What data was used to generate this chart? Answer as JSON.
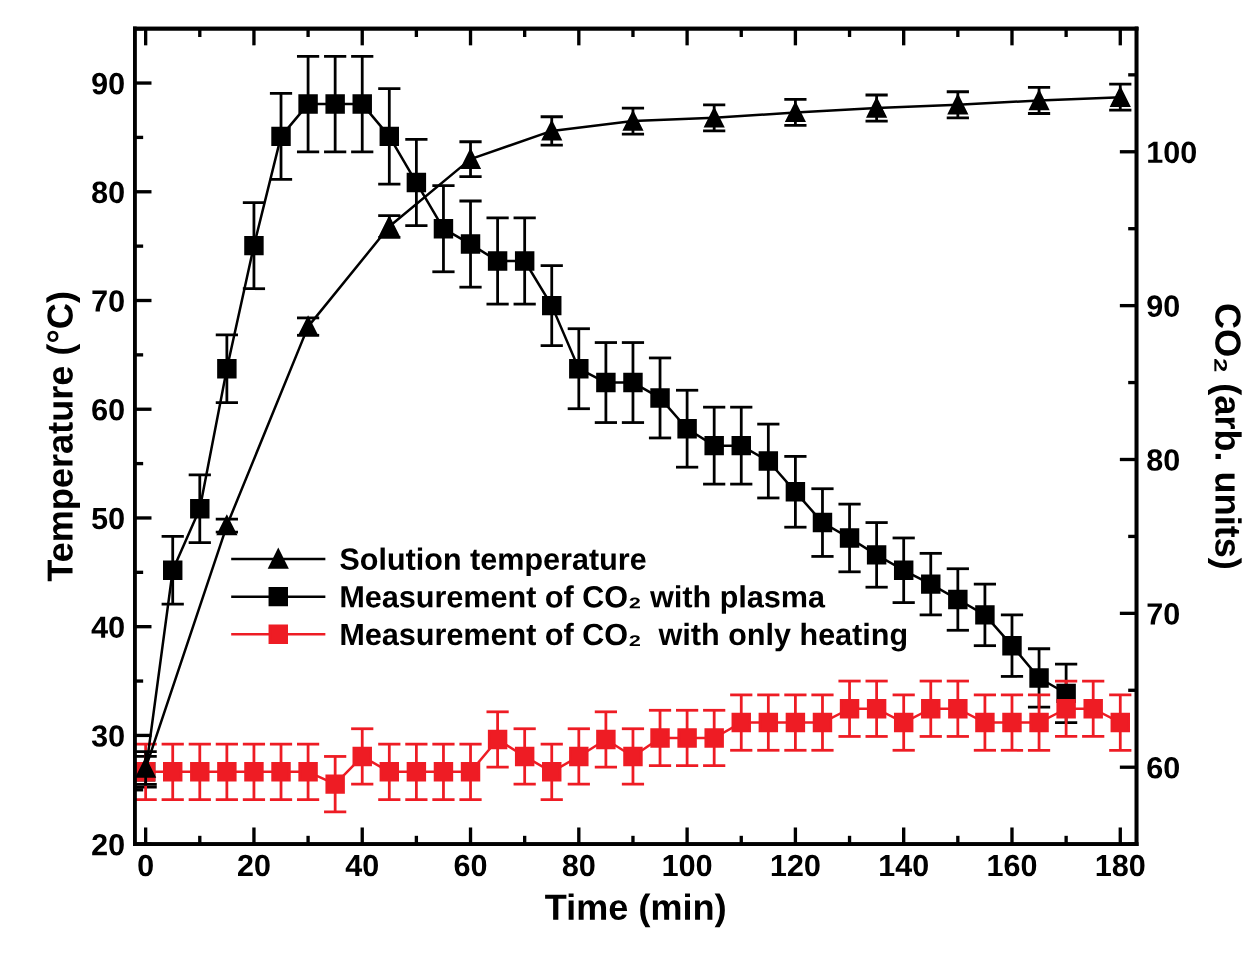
{
  "chart_data": {
    "type": "line",
    "xlabel": "Time (min)",
    "ylabel": "Temperature (°C)",
    "y2label": "CO₂ (arb. units)",
    "xlim": [
      -2,
      183
    ],
    "xticks": [
      0,
      20,
      40,
      60,
      80,
      100,
      120,
      140,
      160,
      180
    ],
    "ylim": [
      20,
      95
    ],
    "yticks": [
      20,
      30,
      40,
      50,
      60,
      70,
      80,
      90
    ],
    "y2lim": [
      55,
      108
    ],
    "y2ticks": [
      60,
      70,
      80,
      90,
      100
    ],
    "legend": "center left",
    "grid": false,
    "line_style": "solid",
    "series": [
      {
        "name": "Solution temperature",
        "color": "#000000",
        "marker": "triangle",
        "x": [
          0,
          15,
          30,
          45,
          60,
          75,
          90,
          105,
          120,
          135,
          150,
          165,
          180
        ],
        "values": [
          27,
          49.3,
          67.6,
          76.8,
          83.0,
          85.6,
          86.5,
          86.8,
          87.3,
          87.7,
          88.0,
          88.4,
          88.7
        ],
        "errors": [
          1.5,
          0.6,
          0.8,
          1.0,
          1.6,
          1.3,
          1.2,
          1.2,
          1.2,
          1.2,
          1.2,
          1.2,
          1.2
        ]
      },
      {
        "name": "Measurement of CO₂ with plasma",
        "color": "#000000",
        "marker": "square",
        "axis": "y2",
        "x": [
          0,
          5,
          10,
          15,
          20,
          25,
          30,
          35,
          40,
          45,
          50,
          55,
          60,
          65,
          70,
          75,
          80,
          85,
          90,
          95,
          100,
          105,
          110,
          115,
          120,
          125,
          130,
          135,
          140,
          145,
          150,
          155,
          160,
          165,
          170
        ],
        "values": [
          59.7,
          72.8,
          76.8,
          85.9,
          93.9,
          101.0,
          103.1,
          103.1,
          103.1,
          101.0,
          98.0,
          95.0,
          94.0,
          92.9,
          92.9,
          90.0,
          85.9,
          85.0,
          85.0,
          84.0,
          82.0,
          80.9,
          80.9,
          79.9,
          77.9,
          75.9,
          74.9,
          73.8,
          72.8,
          71.9,
          70.9,
          69.9,
          67.9,
          65.8,
          64.8
        ],
        "errors": [
          1,
          2.2,
          2.2,
          2.2,
          2.8,
          2.8,
          3.1,
          3.1,
          3.1,
          3.1,
          2.8,
          2.8,
          2.8,
          2.8,
          2.8,
          2.6,
          2.6,
          2.6,
          2.6,
          2.6,
          2.5,
          2.5,
          2.5,
          2.4,
          2.3,
          2.2,
          2.2,
          2.1,
          2.1,
          2.0,
          2.0,
          2.0,
          2.0,
          1.9,
          1.9
        ]
      },
      {
        "name": "Measurement of CO₂  with only heating",
        "color": "#ee1c24",
        "marker": "square",
        "axis": "y2",
        "x": [
          0,
          5,
          10,
          15,
          20,
          25,
          30,
          35,
          40,
          45,
          50,
          55,
          60,
          65,
          70,
          75,
          80,
          85,
          90,
          95,
          100,
          105,
          110,
          115,
          120,
          125,
          130,
          135,
          140,
          145,
          150,
          155,
          160,
          165,
          170,
          175,
          180
        ],
        "values": [
          59.7,
          59.7,
          59.7,
          59.7,
          59.7,
          59.7,
          59.7,
          58.9,
          60.7,
          59.7,
          59.7,
          59.7,
          59.7,
          61.8,
          60.7,
          59.7,
          60.7,
          61.8,
          60.7,
          61.9,
          61.9,
          61.9,
          62.9,
          62.9,
          62.9,
          62.9,
          63.8,
          63.8,
          62.9,
          63.8,
          63.8,
          62.9,
          62.9,
          62.9,
          63.8,
          63.8,
          62.9
        ],
        "errors": [
          1.8,
          1.8,
          1.8,
          1.8,
          1.8,
          1.8,
          1.8,
          1.8,
          1.8,
          1.8,
          1.8,
          1.8,
          1.8,
          1.8,
          1.8,
          1.8,
          1.8,
          1.8,
          1.8,
          1.8,
          1.8,
          1.8,
          1.8,
          1.8,
          1.8,
          1.8,
          1.8,
          1.8,
          1.8,
          1.8,
          1.8,
          1.8,
          1.8,
          1.8,
          1.8,
          1.8,
          1.8
        ]
      }
    ]
  }
}
